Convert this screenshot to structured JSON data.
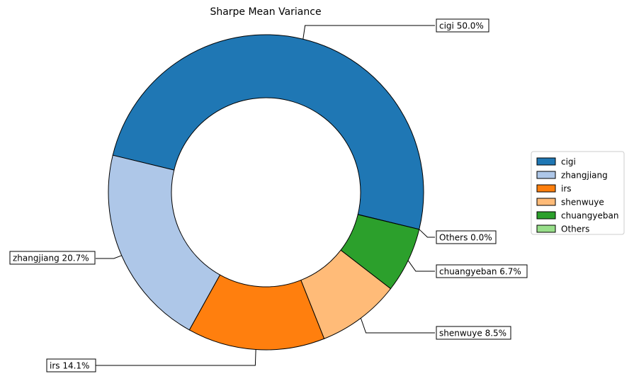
{
  "chart_data": {
    "type": "pie",
    "title": "Sharpe Mean Variance",
    "donut": true,
    "slices": [
      {
        "name": "cigi",
        "value": 50.0,
        "label": "cigi 50.0%",
        "color": "#1f77b4"
      },
      {
        "name": "zhangjiang",
        "value": 20.7,
        "label": "zhangjiang 20.7%",
        "color": "#aec7e8"
      },
      {
        "name": "irs",
        "value": 14.1,
        "label": "irs 14.1%",
        "color": "#ff7f0e"
      },
      {
        "name": "shenwuye",
        "value": 8.5,
        "label": "shenwuye 8.5%",
        "color": "#ffbb78"
      },
      {
        "name": "chuangyeban",
        "value": 6.7,
        "label": "chuangyeban 6.7%",
        "color": "#2ca02c"
      },
      {
        "name": "Others",
        "value": 0.0,
        "label": "Others 0.0%",
        "color": "#98df8a"
      }
    ],
    "legend": {
      "placement": "right",
      "entries": [
        "cigi",
        "zhangjiang",
        "irs",
        "shenwuye",
        "chuangyeban",
        "Others"
      ]
    }
  }
}
